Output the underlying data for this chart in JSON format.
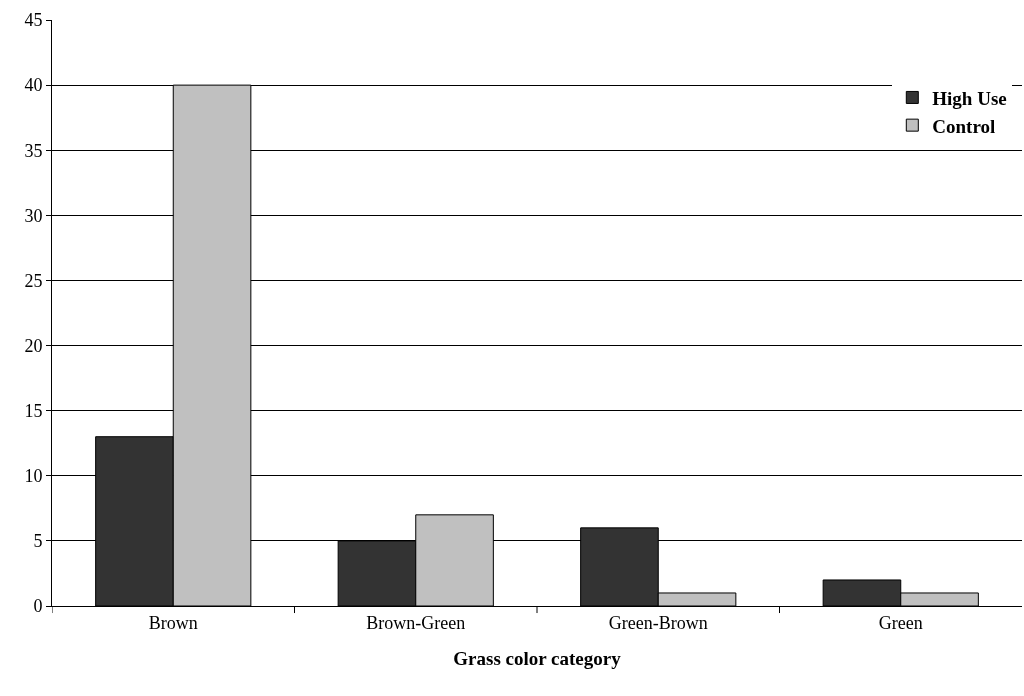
{
  "chart_data": {
    "type": "bar",
    "xlabel": "Grass color category",
    "categories": [
      "Brown",
      "Brown-Green",
      "Green-Brown",
      "Green"
    ],
    "series": [
      {
        "name": "High Use",
        "color": "#333333",
        "values": [
          13,
          5,
          6,
          2
        ]
      },
      {
        "name": "Control",
        "color": "#c0c0c0",
        "values": [
          40,
          7,
          1,
          1
        ]
      }
    ],
    "ylim": [
      0,
      45
    ],
    "yticks": [
      0,
      5,
      10,
      15,
      20,
      25,
      30,
      35,
      40,
      45
    ],
    "grid": "y",
    "legend": "top right"
  }
}
